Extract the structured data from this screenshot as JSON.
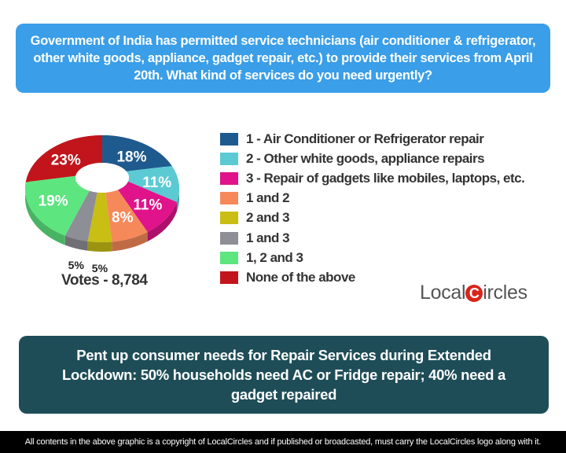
{
  "question": "Government of India has permitted service technicians (air conditioner & refrigerator, other white goods, appliance, gadget repair, etc.) to provide their services from April 20th. What kind of services do you need urgently?",
  "votes": "Votes - 8,784",
  "logo_text": "LocalCircles",
  "headline": "Pent up consumer needs for Repair Services during Extended Lockdown: 50% households need AC or Fridge repair; 40% need a gadget repaired",
  "footer": "All contents in the above graphic is a copyright of LocalCircles and if published or broadcasted, must carry the LocalCircles logo along with it.",
  "chart_data": {
    "type": "pie",
    "style": "3d-donut",
    "legend_position": "right",
    "categories": [
      "1 - Air Conditioner or Refrigerator repair",
      "2 - Other white goods, appliance repairs",
      "3 - Repair of gadgets like mobiles, laptops, etc.",
      "1 and 2",
      "2 and 3",
      "1 and 3",
      "1, 2 and 3",
      "None of the above"
    ],
    "values": [
      18,
      11,
      11,
      8,
      5,
      5,
      19,
      23
    ],
    "labels": [
      "18%",
      "11%",
      "11%",
      "8%",
      "5%",
      "5%",
      "19%",
      "23%"
    ],
    "colors": [
      "#1f5a8e",
      "#5ccad3",
      "#e0138a",
      "#f5895a",
      "#c8be14",
      "#8e8e96",
      "#5de57f",
      "#c1151b"
    ]
  }
}
